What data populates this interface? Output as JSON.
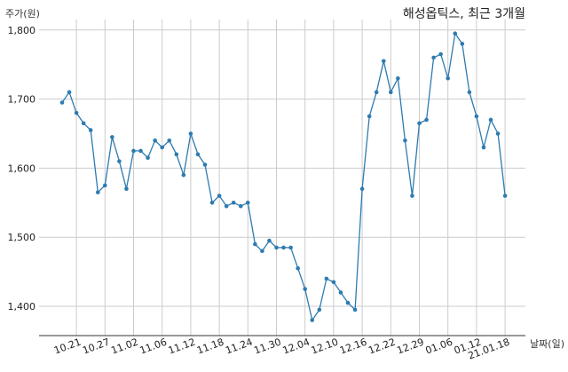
{
  "chart_data": {
    "type": "line",
    "title": "해성옵틱스, 최근 3개월",
    "ylabel": "주가(원)",
    "xlabel": "날짜(일)",
    "ylim": [
      1360,
      1810
    ],
    "yticks": [
      1400,
      1500,
      1600,
      1700,
      1800
    ],
    "ytick_labels": [
      "1,400",
      "1,500",
      "1,600",
      "1,700",
      "1,800"
    ],
    "xtick_labels": [
      "10.21",
      "10.27",
      "11.02",
      "11.06",
      "11.12",
      "11.18",
      "11.24",
      "11.30",
      "12.04",
      "12.10",
      "12.16",
      "12.22",
      "12.29",
      "01.06",
      "01.12",
      "21.01.18"
    ],
    "xtick_index": [
      2,
      6,
      10,
      14,
      18,
      22,
      26,
      30,
      34,
      38,
      42,
      46,
      50,
      54,
      58,
      62
    ],
    "grid": true,
    "line_color": "#2e7bb0",
    "series": [
      {
        "values": [
          1695,
          1710,
          1680,
          1665,
          1655,
          1565,
          1575,
          1645,
          1610,
          1570,
          1625,
          1625,
          1615,
          1640,
          1630,
          1640,
          1620,
          1590,
          1650,
          1620,
          1605,
          1550,
          1560,
          1545,
          1550,
          1545,
          1550,
          1490,
          1480,
          1495,
          1485,
          1485,
          1485,
          1455,
          1425,
          1380,
          1395,
          1440,
          1435,
          1420,
          1405,
          1395,
          1570,
          1675,
          1710,
          1755,
          1710,
          1730,
          1640,
          1560,
          1665,
          1670,
          1760,
          1765,
          1730,
          1795,
          1780,
          1710,
          1675,
          1630,
          1670,
          1650,
          1560
        ]
      }
    ]
  }
}
